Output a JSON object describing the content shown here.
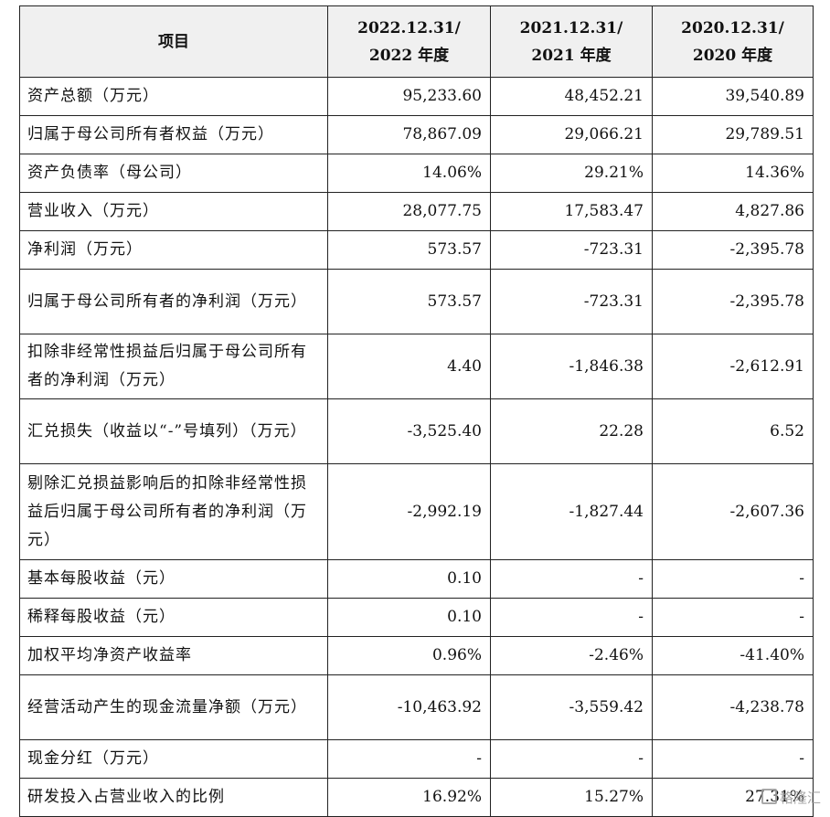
{
  "table": {
    "headers": [
      {
        "line1": "项目",
        "line2": ""
      },
      {
        "line1": "2022.12.31/",
        "line2": "2022 年度"
      },
      {
        "line1": "2021.12.31/",
        "line2": "2021 年度"
      },
      {
        "line1": "2020.12.31/",
        "line2": "2020 年度"
      }
    ],
    "rows": [
      {
        "label": "资产总额（万元）",
        "v2022": "95,233.60",
        "v2021": "48,452.21",
        "v2020": "39,540.89"
      },
      {
        "label": "归属于母公司所有者权益（万元）",
        "v2022": "78,867.09",
        "v2021": "29,066.21",
        "v2020": "29,789.51"
      },
      {
        "label": "资产负债率（母公司）",
        "v2022": "14.06%",
        "v2021": "29.21%",
        "v2020": "14.36%"
      },
      {
        "label": "营业收入（万元）",
        "v2022": "28,077.75",
        "v2021": "17,583.47",
        "v2020": "4,827.86"
      },
      {
        "label": "净利润（万元）",
        "v2022": "573.57",
        "v2021": "-723.31",
        "v2020": "-2,395.78"
      },
      {
        "label": "归属于母公司所有者的净利润（万元）",
        "v2022": "573.57",
        "v2021": "-723.31",
        "v2020": "-2,395.78"
      },
      {
        "label": "扣除非经常性损益后归属于母公司所有者的净利润（万元）",
        "v2022": "4.40",
        "v2021": "-1,846.38",
        "v2020": "-2,612.91"
      },
      {
        "label": "汇兑损失（收益以“-”号填列）（万元）",
        "v2022": "-3,525.40",
        "v2021": "22.28",
        "v2020": "6.52"
      },
      {
        "label": "剔除汇兑损益影响后的扣除非经常性损益后归属于母公司所有者的净利润（万元）",
        "v2022": "-2,992.19",
        "v2021": "-1,827.44",
        "v2020": "-2,607.36"
      },
      {
        "label": "基本每股收益（元）",
        "v2022": "0.10",
        "v2021": "-",
        "v2020": "-"
      },
      {
        "label": "稀释每股收益（元）",
        "v2022": "0.10",
        "v2021": "-",
        "v2020": "-"
      },
      {
        "label": "加权平均净资产收益率",
        "v2022": "0.96%",
        "v2021": "-2.46%",
        "v2020": "-41.40%"
      },
      {
        "label": "经营活动产生的现金流量净额（万元）",
        "v2022": "-10,463.92",
        "v2021": "-3,559.42",
        "v2020": "-4,238.78"
      },
      {
        "label": "现金分红（万元）",
        "v2022": "-",
        "v2021": "-",
        "v2020": "-"
      },
      {
        "label": "研发投入占营业收入的比例",
        "v2022": "16.92%",
        "v2021": "15.27%",
        "v2020": "27.31%"
      }
    ]
  },
  "watermark": {
    "text": "格隆汇"
  }
}
